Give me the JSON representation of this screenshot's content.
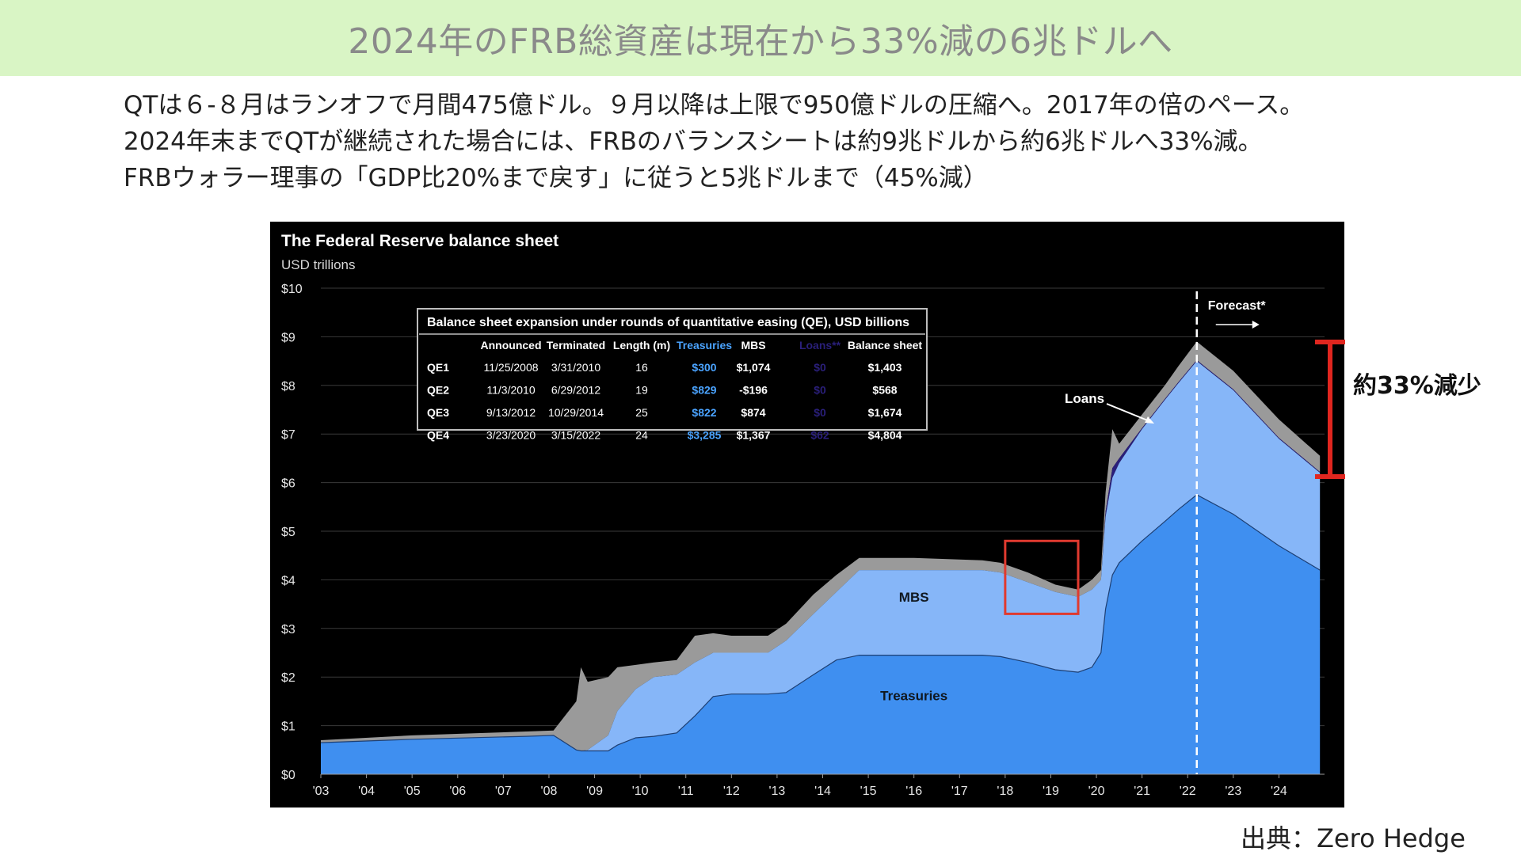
{
  "slide": {
    "title": "2024年のFRB総資産は現在から33%減の6兆ドルへ",
    "lead_lines": [
      "QTは６-８月はランオフで月間475億ドル。９月以降は上限で950億ドルの圧縮へ。2017年の倍のペース。",
      "2024年末までQTが継続された場合には、FRBのバランスシートは約9兆ドルから約6兆ドルへ33%減。",
      "FRBウォラー理事の「GDP比20%まで戻す」に従うと5兆ドルまで（45%減）"
    ],
    "annotation": "約33%減少",
    "source": "出典：Zero Hedge",
    "colors": {
      "title_band": "#d9f5c5",
      "annotation_red": "#e0261f",
      "highlight_box": "#e03a2f"
    }
  },
  "chart_data": {
    "type": "area",
    "title": "The Federal Reserve balance sheet",
    "ylabel": "USD trillions",
    "ylim": [
      0,
      10
    ],
    "yticks": [
      0,
      1,
      2,
      3,
      4,
      5,
      6,
      7,
      8,
      9,
      10
    ],
    "ytick_labels": [
      "$0",
      "$1",
      "$2",
      "$3",
      "$4",
      "$5",
      "$6",
      "$7",
      "$8",
      "$9",
      "$10"
    ],
    "xlim": [
      2003,
      2025
    ],
    "xticks": [
      2003,
      2004,
      2005,
      2006,
      2007,
      2008,
      2009,
      2010,
      2011,
      2012,
      2013,
      2014,
      2015,
      2016,
      2017,
      2018,
      2019,
      2020,
      2021,
      2022,
      2023,
      2024
    ],
    "xtick_labels": [
      "'03",
      "'04",
      "'05",
      "'06",
      "'07",
      "'08",
      "'09",
      "'10",
      "'11",
      "'12",
      "'13",
      "'14",
      "'15",
      "'16",
      "'17",
      "'18",
      "'19",
      "'20",
      "'21",
      "'22",
      "'23",
      "'24"
    ],
    "forecast_start": 2022.2,
    "forecast_label": "Forecast*",
    "series_labels": {
      "mbs": "MBS",
      "treasuries": "Treasuries",
      "loans": "Loans"
    },
    "colors": {
      "treasuries": "#3f8ff0",
      "mbs": "#86b6f8",
      "loans": "#2a1f7a",
      "other": "#9a9a9a",
      "background": "#000000"
    },
    "x": [
      2003.0,
      2005.0,
      2007.5,
      2008.1,
      2008.6,
      2008.7,
      2008.85,
      2009.3,
      2009.5,
      2009.9,
      2010.3,
      2010.8,
      2011.2,
      2011.6,
      2012.0,
      2012.8,
      2013.2,
      2013.8,
      2014.3,
      2014.8,
      2016.0,
      2017.5,
      2017.9,
      2018.5,
      2019.1,
      2019.6,
      2019.9,
      2020.1,
      2020.2,
      2020.35,
      2020.5,
      2021.0,
      2021.5,
      2021.8,
      2022.2,
      2023.0,
      2024.0,
      2024.9
    ],
    "treasuries": [
      0.65,
      0.72,
      0.78,
      0.8,
      0.5,
      0.48,
      0.48,
      0.48,
      0.6,
      0.75,
      0.78,
      0.85,
      1.2,
      1.6,
      1.65,
      1.65,
      1.68,
      2.05,
      2.35,
      2.45,
      2.45,
      2.45,
      2.42,
      2.3,
      2.15,
      2.1,
      2.2,
      2.5,
      3.4,
      4.1,
      4.35,
      4.8,
      5.2,
      5.45,
      5.75,
      5.35,
      4.7,
      4.2
    ],
    "mbs": [
      0.65,
      0.72,
      0.78,
      0.8,
      0.5,
      0.48,
      0.5,
      0.8,
      1.3,
      1.75,
      2.0,
      2.05,
      2.3,
      2.5,
      2.5,
      2.5,
      2.75,
      3.3,
      3.75,
      4.2,
      4.2,
      4.2,
      4.15,
      3.95,
      3.75,
      3.65,
      3.8,
      4.0,
      5.3,
      6.1,
      6.4,
      7.1,
      7.7,
      8.05,
      8.5,
      7.9,
      6.9,
      6.2
    ],
    "loans": [
      0.65,
      0.72,
      0.78,
      0.8,
      0.5,
      0.48,
      0.5,
      0.8,
      1.3,
      1.75,
      2.0,
      2.05,
      2.3,
      2.5,
      2.5,
      2.5,
      2.75,
      3.3,
      3.75,
      4.2,
      4.2,
      4.2,
      4.15,
      3.95,
      3.75,
      3.65,
      3.8,
      4.0,
      5.4,
      6.3,
      6.5,
      7.12,
      7.72,
      8.07,
      8.52,
      7.92,
      6.92,
      6.22
    ],
    "total": [
      0.7,
      0.8,
      0.88,
      0.9,
      1.5,
      2.2,
      1.9,
      2.0,
      2.2,
      2.25,
      2.3,
      2.35,
      2.85,
      2.9,
      2.85,
      2.85,
      3.1,
      3.7,
      4.1,
      4.45,
      4.45,
      4.4,
      4.35,
      4.15,
      3.9,
      3.8,
      4.0,
      4.2,
      5.8,
      7.1,
      6.8,
      7.4,
      8.0,
      8.4,
      8.9,
      8.3,
      7.3,
      6.55
    ],
    "annotation_highlight_box": {
      "x_range": [
        2018.0,
        2019.6
      ],
      "y_range": [
        3.3,
        4.8
      ]
    },
    "table": {
      "title": "Balance sheet expansion under rounds of quantitative easing (QE), USD billions",
      "headers": [
        "",
        "Announced",
        "Terminated",
        "Length (m)",
        "Treasuries",
        "MBS",
        "Loans**",
        "Balance sheet"
      ],
      "rows": [
        [
          "QE1",
          "11/25/2008",
          "3/31/2010",
          "16",
          "$300",
          "$1,074",
          "$0",
          "$1,403"
        ],
        [
          "QE2",
          "11/3/2010",
          "6/29/2012",
          "19",
          "$829",
          "-$196",
          "$0",
          "$568"
        ],
        [
          "QE3",
          "9/13/2012",
          "10/29/2014",
          "25",
          "$822",
          "$874",
          "$0",
          "$1,674"
        ],
        [
          "QE4",
          "3/23/2020",
          "3/15/2022",
          "24",
          "$3,285",
          "$1,367",
          "$62",
          "$4,804"
        ]
      ],
      "column_colors": {
        "4": "#4aa3ff",
        "6": "#2a1f7a"
      }
    }
  }
}
